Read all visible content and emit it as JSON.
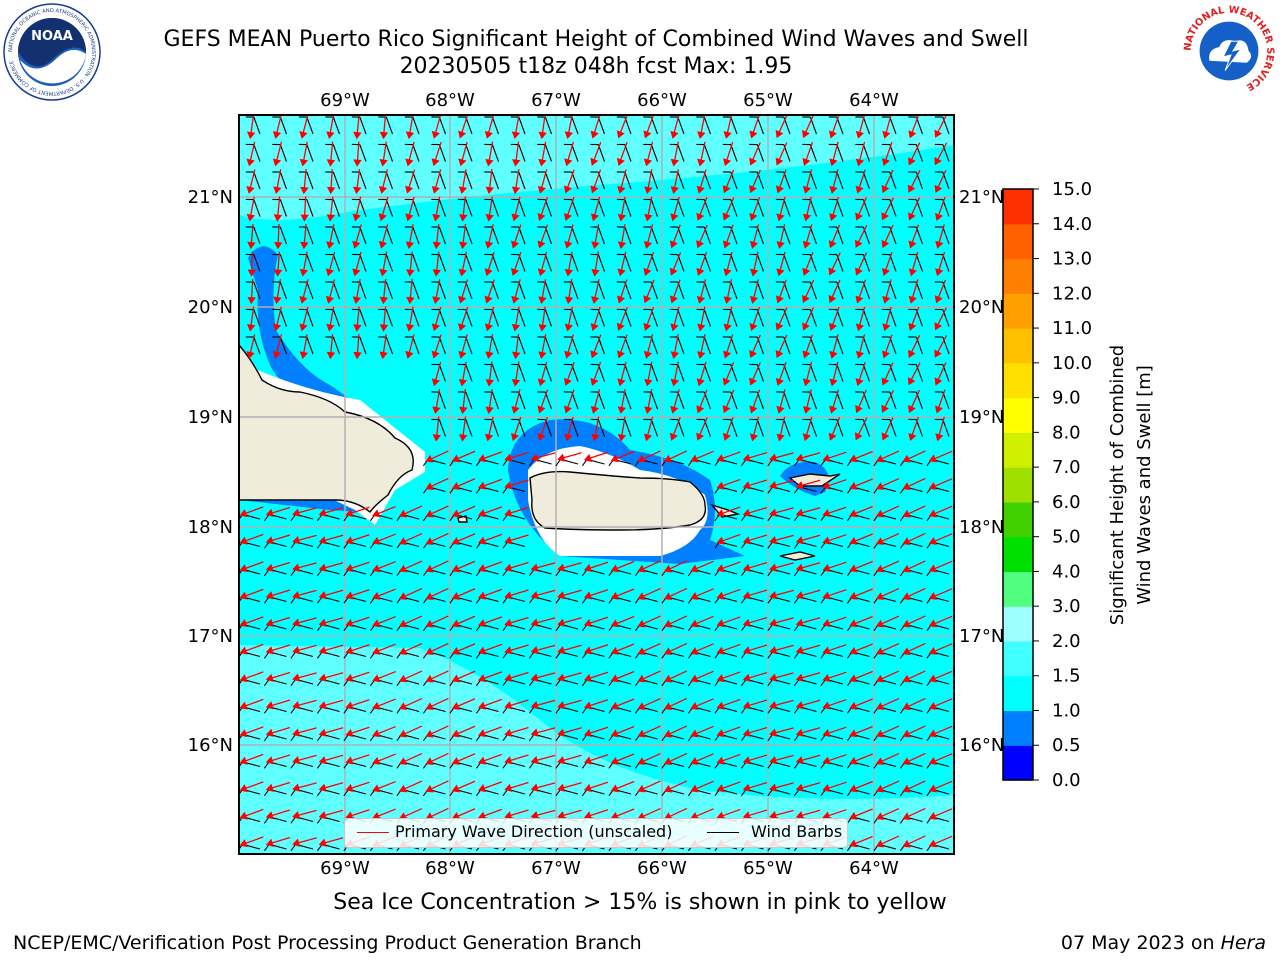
{
  "title": {
    "line1": "GEFS MEAN Puerto Rico Significant Height of Combined Wind Waves and Swell",
    "line2": "20230505 t18z 048h fcst   Max: 1.95"
  },
  "map": {
    "lon_labels": [
      "69°W",
      "68°W",
      "67°W",
      "66°W",
      "65°W",
      "64°W"
    ],
    "lat_labels": [
      "21°N",
      "20°N",
      "19°N",
      "18°N",
      "17°N",
      "16°N"
    ],
    "land_color": "#efecdc",
    "ocean_color": "#00ffff",
    "light_band_color": "#60ffff"
  },
  "legend": {
    "wave_label": "Primary Wave Direction (unscaled)",
    "wave_color": "#ff0000",
    "barb_label": "Wind Barbs",
    "barb_color": "#000000"
  },
  "colorbar": {
    "title_line1": "Significant Height of Combined",
    "title_line2": "Wind Waves and Swell [m]",
    "ticks": [
      "0.0",
      "0.5",
      "1.0",
      "1.5",
      "2.0",
      "3.0",
      "4.0",
      "5.0",
      "6.0",
      "7.0",
      "8.0",
      "9.0",
      "10.0",
      "11.0",
      "12.0",
      "13.0",
      "14.0",
      "15.0"
    ],
    "colors": [
      "#0000ff",
      "#0080ff",
      "#00ffff",
      "#40ffff",
      "#a0ffff",
      "#50ff80",
      "#00e000",
      "#40d000",
      "#a0e000",
      "#d0f000",
      "#ffff00",
      "#ffe000",
      "#ffc000",
      "#ffa000",
      "#ff8000",
      "#ff6000",
      "#ff3000"
    ]
  },
  "ice_note": "Sea Ice Concentration > 15% is shown in pink to yellow",
  "footer": {
    "left": "NCEP/EMC/Verification Post Processing Product Generation Branch",
    "right_prefix": "07 May 2023 on ",
    "right_host": "Hera"
  },
  "logos": {
    "noaa_text": "NOAA",
    "noaa_ring": "NATIONAL OCEANIC AND ATMOSPHERIC ADMINISTRATION · U.S. DEPARTMENT OF COMMERCE",
    "nws_ring": "NATIONAL WEATHER SERVICE"
  }
}
